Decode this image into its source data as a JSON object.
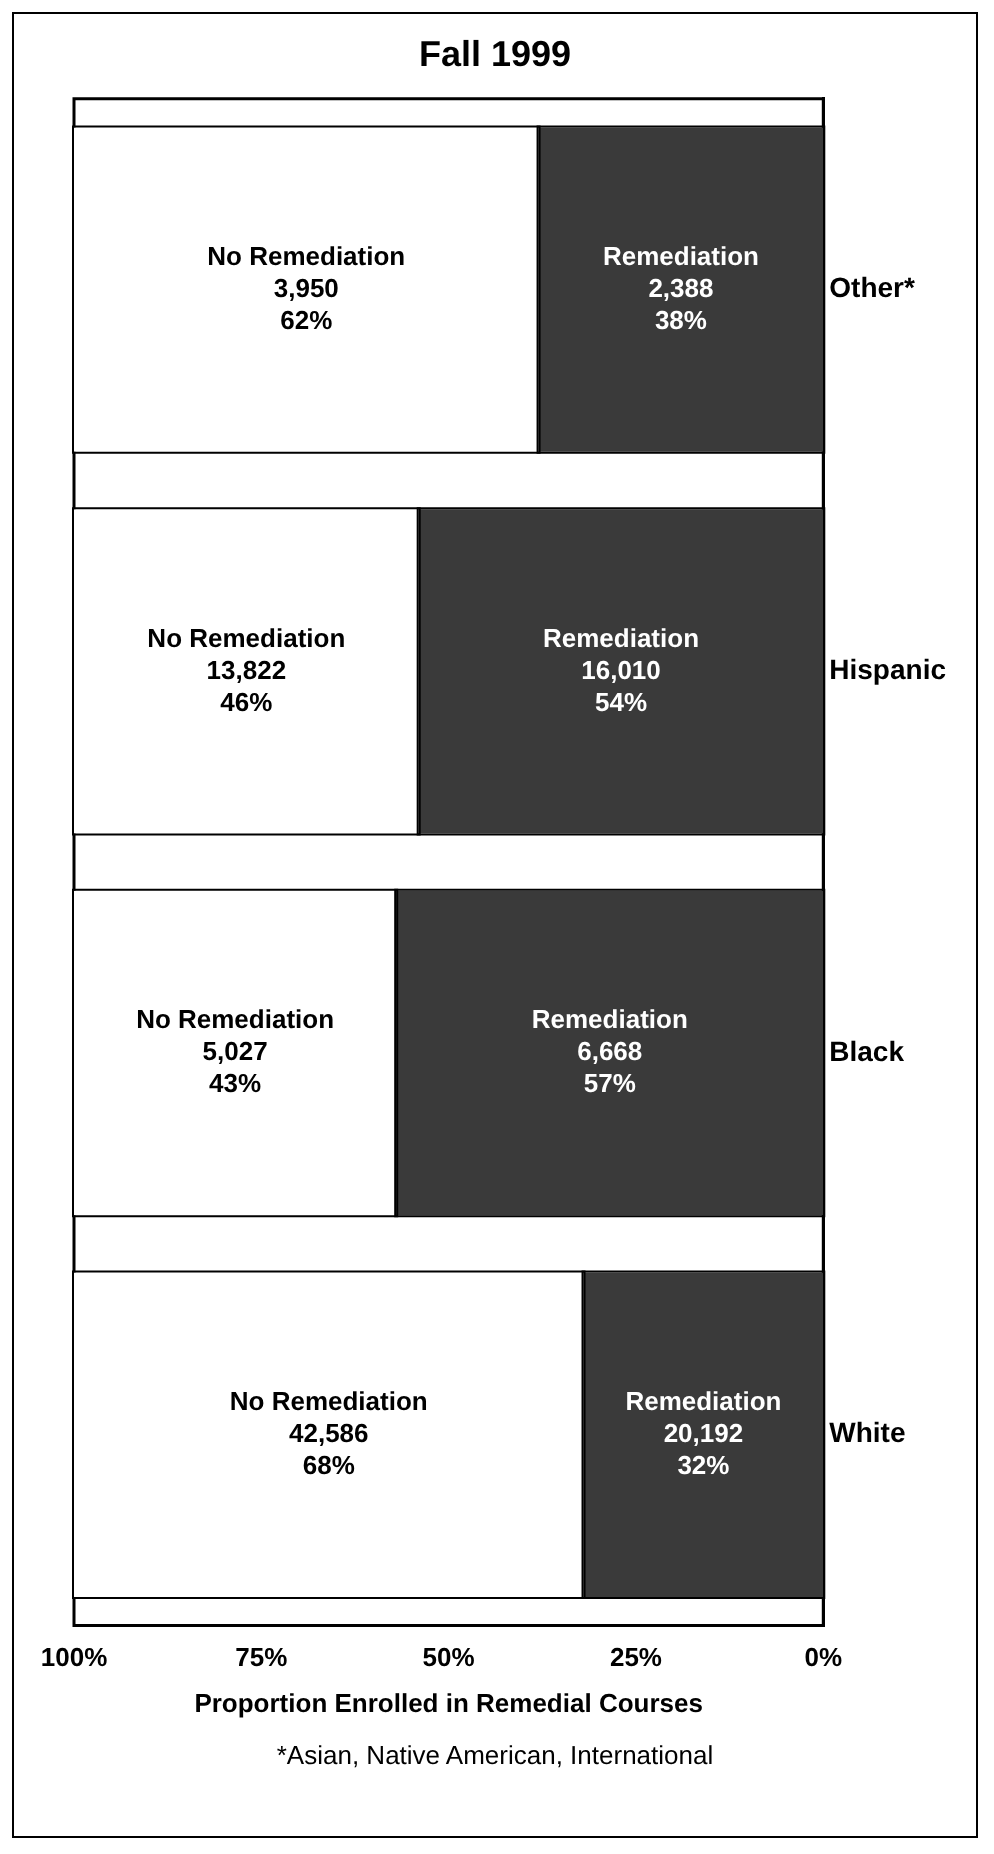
{
  "chart_data": {
    "type": "bar",
    "orientation": "horizontal",
    "stacked": true,
    "title": "Fall 1999",
    "xlabel": "Proportion Enrolled in Remedial Courses",
    "categories": [
      "Other*",
      "Hispanic",
      "Black",
      "White"
    ],
    "series": [
      {
        "name": "Remediation",
        "color": "#3a3a3a",
        "values": [
          38,
          54,
          57,
          32
        ],
        "value_labels": [
          "2,388\n38%",
          "16,010\n54%",
          "6,668\n57%",
          "20,192\n32%"
        ]
      },
      {
        "name": "No Remediation",
        "color": "#ffffff",
        "values": [
          62,
          46,
          43,
          68
        ],
        "value_labels": [
          "3,950\n62%",
          "13,822\n46%",
          "5,027\n43%",
          "42,586\n68%"
        ]
      }
    ],
    "xlim": [
      100,
      0
    ],
    "xticks": [
      {
        "value": 100,
        "label": "100%"
      },
      {
        "value": 75,
        "label": "75%"
      },
      {
        "value": 50,
        "label": "50%"
      },
      {
        "value": 25,
        "label": "25%"
      },
      {
        "value": 0,
        "label": "0%"
      }
    ],
    "grid": false,
    "legend": false,
    "annotations": [
      "*Asian, Native American, International"
    ]
  }
}
